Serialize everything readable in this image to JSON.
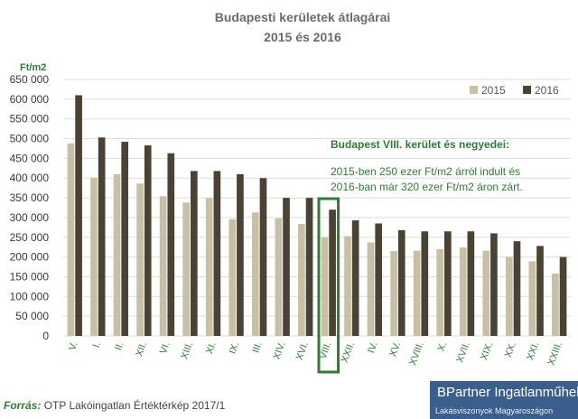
{
  "chart_data": {
    "type": "bar",
    "title": "Budapesti kerületek átlagárai",
    "subtitle": "2015 és 2016",
    "ylabel": "Ft/m2",
    "ylim": [
      0,
      650000
    ],
    "yticks": [
      "0",
      "50 000",
      "100 000",
      "150 000",
      "200 000",
      "250 000",
      "300 000",
      "350 000",
      "400 000",
      "450 000",
      "500 000",
      "550 000",
      "600 000",
      "650 000"
    ],
    "ytick_values": [
      0,
      50000,
      100000,
      150000,
      200000,
      250000,
      300000,
      350000,
      400000,
      450000,
      500000,
      550000,
      600000,
      650000
    ],
    "grid": true,
    "legend_position": "top-right",
    "categories": [
      "V.",
      "I.",
      "II.",
      "XII.",
      "VI.",
      "XIII.",
      "XI.",
      "IX.",
      "III.",
      "XIV.",
      "XVI.",
      "VIII.",
      "XXII.",
      "IV.",
      "XV.",
      "XVIII.",
      "X.",
      "XVII.",
      "XIX.",
      "XX.",
      "XXI.",
      "XXIII."
    ],
    "series": [
      {
        "name": "2015",
        "color": "#c8c0a4",
        "values": [
          488000,
          401000,
          410000,
          386000,
          354000,
          338000,
          349000,
          296000,
          313000,
          298000,
          284000,
          250000,
          253000,
          237000,
          215000,
          216000,
          220000,
          224000,
          216000,
          200000,
          189000,
          158000
        ]
      },
      {
        "name": "2016",
        "color": "#4a4232",
        "values": [
          610000,
          503000,
          492000,
          483000,
          463000,
          418000,
          418000,
          410000,
          400000,
          350000,
          350000,
          320000,
          293000,
          285000,
          268000,
          265000,
          265000,
          265000,
          260000,
          240000,
          228000,
          200000
        ]
      }
    ],
    "highlight_category": "VIII.",
    "highlight_color": "#2e7d32",
    "annotation": {
      "heading": "Budapest VIII. kerület és negyedei:",
      "line1": "2015-ben 250 ezer Ft/m2 árról indult és",
      "line2": "2016-ban már 320 ezer Ft/m2 áron zárt."
    }
  },
  "footer": {
    "source_label": "Forrás:",
    "source_text": "OTP Lakóingatlan Értéktérkép 2017/1"
  },
  "brand": {
    "name": "BPartner Ingatlanműhely",
    "subtitle": "Lakásviszonyok Magyaroszágon",
    "color": "#3a5f8c"
  }
}
